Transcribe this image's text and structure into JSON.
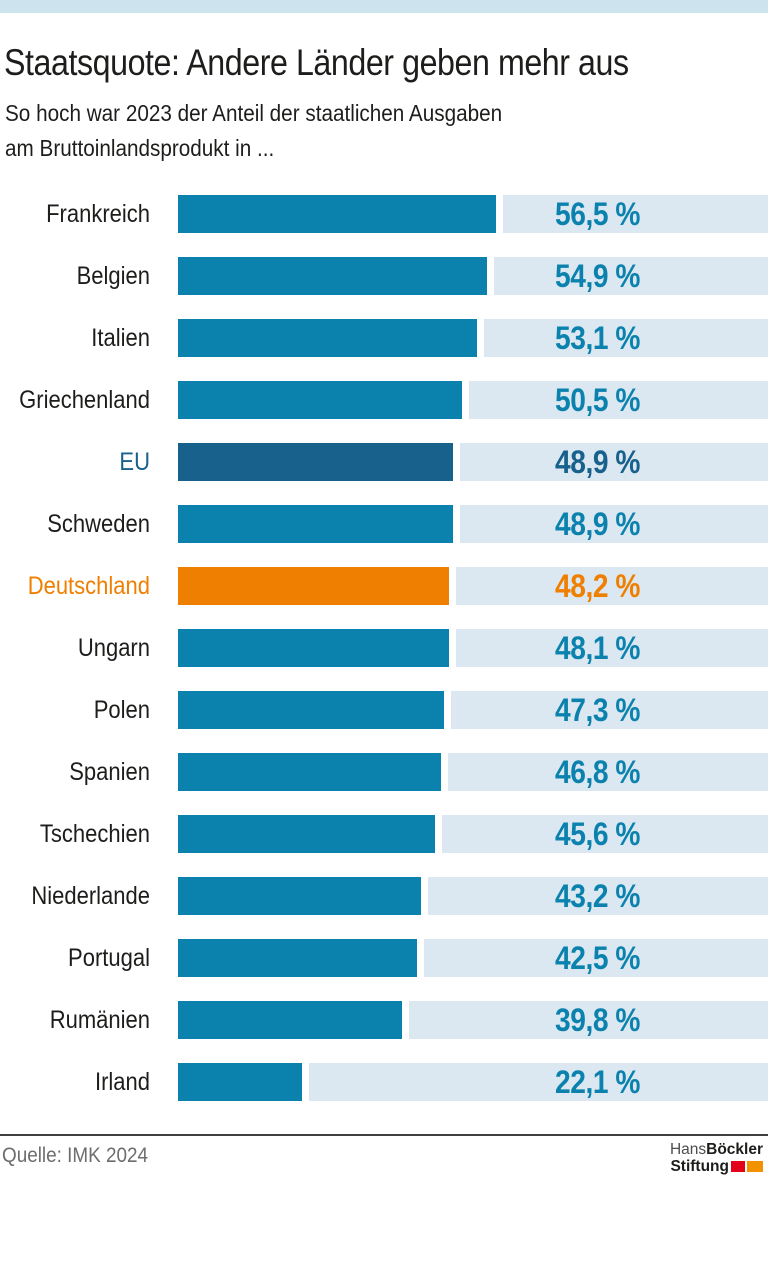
{
  "colors": {
    "top_strip": "#cde4ef",
    "bar": "#0b82ad",
    "bar_eu": "#17618c",
    "bar_highlight": "#ef7f00",
    "track": "#dce8f1",
    "logo_red": "#e2001a",
    "logo_orange": "#f39200"
  },
  "header": {
    "title": "Staatsquote: Andere Länder geben mehr aus",
    "subtitle_line1": "So hoch war 2023 der Anteil der staatlichen Ausgaben",
    "subtitle_line2": "am Bruttoinlandsprodukt in ..."
  },
  "chart_data": {
    "type": "bar",
    "orientation": "horizontal",
    "title": "Staatsquote: Andere Länder geben mehr aus",
    "subtitle": "So hoch war 2023 der Anteil der staatlichen Ausgaben am Bruttoinlandsprodukt in ...",
    "unit": "% des BIP",
    "xlim": [
      0,
      104.8
    ],
    "grid": false,
    "legend": false,
    "rows": [
      {
        "label": "Frankreich",
        "value": 56.5,
        "display_value": "56,5 %",
        "variant": "default"
      },
      {
        "label": "Belgien",
        "value": 54.9,
        "display_value": "54,9 %",
        "variant": "default"
      },
      {
        "label": "Italien",
        "value": 53.1,
        "display_value": "53,1 %",
        "variant": "default"
      },
      {
        "label": "Griechenland",
        "value": 50.5,
        "display_value": "50,5 %",
        "variant": "default"
      },
      {
        "label": "EU",
        "value": 48.9,
        "display_value": "48,9 %",
        "variant": "eu"
      },
      {
        "label": "Schweden",
        "value": 48.9,
        "display_value": "48,9 %",
        "variant": "default"
      },
      {
        "label": "Deutschland",
        "value": 48.2,
        "display_value": "48,2 %",
        "variant": "highlight"
      },
      {
        "label": "Ungarn",
        "value": 48.1,
        "display_value": "48,1 %",
        "variant": "default"
      },
      {
        "label": "Polen",
        "value": 47.3,
        "display_value": "47,3 %",
        "variant": "default"
      },
      {
        "label": "Spanien",
        "value": 46.8,
        "display_value": "46,8 %",
        "variant": "default"
      },
      {
        "label": "Tschechien",
        "value": 45.6,
        "display_value": "45,6 %",
        "variant": "default"
      },
      {
        "label": "Niederlande",
        "value": 43.2,
        "display_value": "43,2 %",
        "variant": "default"
      },
      {
        "label": "Portugal",
        "value": 42.5,
        "display_value": "42,5 %",
        "variant": "default"
      },
      {
        "label": "Rumänien",
        "value": 39.8,
        "display_value": "39,8 %",
        "variant": "default"
      },
      {
        "label": "Irland",
        "value": 22.1,
        "display_value": "22,1 %",
        "variant": "default"
      }
    ]
  },
  "footer": {
    "source": "Quelle: IMK 2024",
    "logo": {
      "line1_light": "Hans",
      "line1_bold": "Böckler",
      "line2_bold": "Stiftung"
    }
  }
}
